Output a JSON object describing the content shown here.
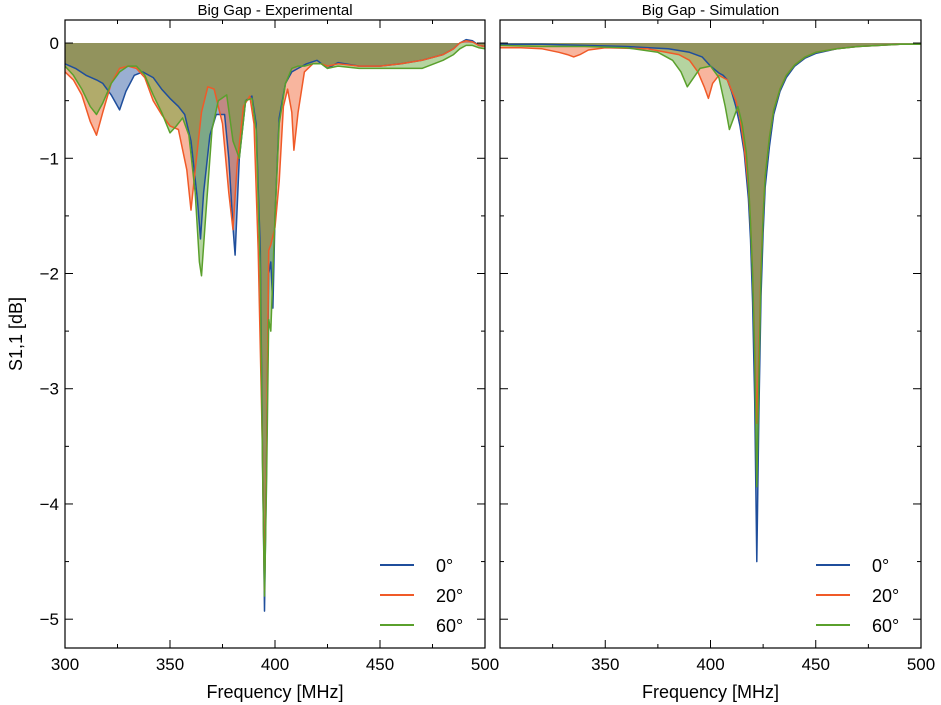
{
  "chart_data": [
    {
      "type": "area",
      "title": "Big Gap - Experimental",
      "xlabel": "Frequency [MHz]",
      "ylabel": "S1,1 [dB]",
      "xlim": [
        300,
        500
      ],
      "ylim": [
        -5.25,
        0.2
      ],
      "xticks": [
        300,
        350,
        400,
        450,
        500
      ],
      "xtick_labels": [
        "300",
        "350",
        "400",
        "450",
        "500"
      ],
      "yticks": [
        0,
        -1,
        -2,
        -3,
        -4,
        -5
      ],
      "ytick_labels": [
        "0",
        "−1",
        "−2",
        "−3",
        "−4",
        "−5"
      ],
      "legend_position": "lower-right",
      "series": [
        {
          "name": "0°",
          "color": "#1f4e9c",
          "x": [
            300,
            305,
            310,
            315,
            318,
            322,
            326,
            329,
            333,
            337,
            342,
            346,
            350,
            354,
            357,
            360,
            363,
            364.5,
            366,
            369,
            372,
            376,
            378,
            380,
            381,
            383,
            386,
            389,
            391,
            393,
            394,
            395,
            396,
            397,
            398,
            399,
            400,
            402,
            405,
            408,
            411,
            415,
            420,
            425,
            430,
            440,
            450,
            460,
            470,
            480,
            485,
            488,
            491,
            494,
            497,
            500
          ],
          "values": [
            -0.18,
            -0.22,
            -0.28,
            -0.32,
            -0.35,
            -0.45,
            -0.58,
            -0.42,
            -0.28,
            -0.25,
            -0.3,
            -0.4,
            -0.48,
            -0.55,
            -0.62,
            -0.85,
            -1.35,
            -1.7,
            -1.3,
            -0.8,
            -0.62,
            -0.62,
            -1.0,
            -1.6,
            -1.84,
            -1.0,
            -0.5,
            -0.46,
            -0.7,
            -1.8,
            -3.5,
            -4.93,
            -3.6,
            -2.0,
            -1.9,
            -2.3,
            -1.5,
            -0.65,
            -0.35,
            -0.25,
            -0.22,
            -0.18,
            -0.15,
            -0.22,
            -0.17,
            -0.2,
            -0.2,
            -0.18,
            -0.15,
            -0.1,
            -0.05,
            0.0,
            0.03,
            0.02,
            -0.02,
            -0.03
          ]
        },
        {
          "name": "20°",
          "color": "#f05a28",
          "x": [
            300,
            304,
            308,
            312,
            315,
            318,
            322,
            326,
            330,
            334,
            338,
            342,
            346,
            350,
            354,
            358,
            360,
            362,
            365,
            368,
            371,
            375,
            378,
            380,
            382,
            385,
            388,
            390,
            392,
            394,
            395,
            396,
            397,
            398,
            400,
            402,
            404,
            406,
            408,
            409,
            411,
            414,
            418,
            422,
            425,
            430,
            440,
            450,
            460,
            470,
            480,
            485,
            488,
            491,
            494,
            497,
            500
          ],
          "values": [
            -0.25,
            -0.32,
            -0.45,
            -0.68,
            -0.8,
            -0.6,
            -0.35,
            -0.22,
            -0.2,
            -0.22,
            -0.3,
            -0.5,
            -0.62,
            -0.72,
            -0.75,
            -1.1,
            -1.45,
            -1.1,
            -0.6,
            -0.38,
            -0.4,
            -0.7,
            -1.3,
            -1.62,
            -1.05,
            -0.55,
            -0.46,
            -0.7,
            -1.8,
            -3.5,
            -4.75,
            -3.6,
            -1.8,
            -1.75,
            -1.6,
            -1.2,
            -0.55,
            -0.4,
            -0.6,
            -0.93,
            -0.6,
            -0.25,
            -0.18,
            -0.18,
            -0.2,
            -0.18,
            -0.2,
            -0.2,
            -0.18,
            -0.15,
            -0.1,
            -0.05,
            0.0,
            0.02,
            0.01,
            -0.02,
            -0.03
          ]
        },
        {
          "name": "60°",
          "color": "#5aa02c",
          "x": [
            300,
            304,
            308,
            312,
            315,
            318,
            322,
            326,
            330,
            334,
            338,
            342,
            346,
            350,
            353,
            356,
            359,
            362,
            364,
            365,
            367,
            370,
            373,
            377,
            380,
            383,
            386,
            389,
            391,
            393,
            394,
            395,
            396,
            397,
            398,
            400,
            402,
            405,
            408,
            411,
            414,
            418,
            422,
            425,
            430,
            440,
            450,
            460,
            470,
            480,
            485,
            488,
            491,
            494,
            497,
            500
          ],
          "values": [
            -0.2,
            -0.28,
            -0.4,
            -0.55,
            -0.62,
            -0.52,
            -0.35,
            -0.25,
            -0.2,
            -0.2,
            -0.28,
            -0.45,
            -0.6,
            -0.78,
            -0.72,
            -0.65,
            -0.8,
            -1.3,
            -1.9,
            -2.02,
            -1.5,
            -0.75,
            -0.5,
            -0.45,
            -0.85,
            -1.0,
            -0.5,
            -0.48,
            -0.75,
            -2.0,
            -3.6,
            -4.8,
            -3.8,
            -2.4,
            -2.5,
            -1.5,
            -0.7,
            -0.35,
            -0.22,
            -0.2,
            -0.2,
            -0.18,
            -0.18,
            -0.22,
            -0.2,
            -0.22,
            -0.22,
            -0.22,
            -0.22,
            -0.15,
            -0.1,
            -0.05,
            -0.02,
            -0.02,
            -0.04,
            -0.05
          ]
        }
      ]
    },
    {
      "type": "area",
      "title": "Big Gap - Simulation",
      "xlabel": "Frequency [MHz]",
      "ylabel": "",
      "xlim": [
        300,
        500
      ],
      "ylim": [
        -5.25,
        0.2
      ],
      "xticks": [
        350,
        400,
        450,
        500
      ],
      "xtick_labels": [
        "350",
        "400",
        "450",
        "500"
      ],
      "yticks": [
        0,
        -1,
        -2,
        -3,
        -4,
        -5
      ],
      "ytick_labels": [],
      "legend_position": "lower-right",
      "series": [
        {
          "name": "0°",
          "color": "#1f4e9c",
          "x": [
            300,
            320,
            340,
            360,
            380,
            390,
            396,
            400,
            404,
            406,
            408,
            410,
            412,
            414,
            416,
            418,
            419,
            420,
            421,
            422,
            423,
            424,
            425,
            426,
            428,
            430,
            433,
            436,
            440,
            445,
            450,
            460,
            470,
            480,
            490,
            500
          ],
          "values": [
            -0.01,
            -0.01,
            -0.02,
            -0.03,
            -0.05,
            -0.08,
            -0.12,
            -0.2,
            -0.26,
            -0.28,
            -0.32,
            -0.42,
            -0.55,
            -0.72,
            -0.95,
            -1.35,
            -1.7,
            -2.25,
            -3.1,
            -4.5,
            -3.2,
            -2.2,
            -1.65,
            -1.25,
            -0.9,
            -0.62,
            -0.42,
            -0.3,
            -0.2,
            -0.13,
            -0.09,
            -0.05,
            -0.03,
            -0.02,
            -0.01,
            -0.01
          ]
        },
        {
          "name": "20°",
          "color": "#f05a28",
          "x": [
            300,
            310,
            320,
            328,
            332,
            335,
            338,
            342,
            350,
            370,
            385,
            390,
            394,
            397,
            399,
            401,
            404,
            408,
            412,
            414,
            416,
            418,
            419,
            420,
            421,
            422,
            423,
            424,
            425,
            426,
            428,
            430,
            433,
            436,
            440,
            445,
            450,
            460,
            470,
            480,
            490,
            500
          ],
          "values": [
            -0.04,
            -0.04,
            -0.05,
            -0.08,
            -0.1,
            -0.12,
            -0.1,
            -0.06,
            -0.04,
            -0.05,
            -0.1,
            -0.15,
            -0.25,
            -0.38,
            -0.48,
            -0.35,
            -0.28,
            -0.32,
            -0.5,
            -0.65,
            -0.9,
            -1.25,
            -1.55,
            -2.0,
            -2.6,
            -3.3,
            -2.7,
            -1.95,
            -1.5,
            -1.15,
            -0.82,
            -0.58,
            -0.4,
            -0.28,
            -0.19,
            -0.12,
            -0.08,
            -0.05,
            -0.03,
            -0.02,
            -0.01,
            -0.01
          ]
        },
        {
          "name": "60°",
          "color": "#5aa02c",
          "x": [
            300,
            320,
            340,
            360,
            375,
            382,
            386,
            389,
            392,
            395,
            400,
            404,
            407,
            409,
            411,
            413,
            415,
            417,
            418,
            419,
            420,
            421,
            422,
            423,
            424,
            425,
            426,
            428,
            430,
            433,
            436,
            440,
            445,
            450,
            460,
            470,
            480,
            490,
            500
          ],
          "values": [
            -0.02,
            -0.03,
            -0.03,
            -0.04,
            -0.08,
            -0.15,
            -0.25,
            -0.38,
            -0.3,
            -0.22,
            -0.2,
            -0.3,
            -0.55,
            -0.75,
            -0.65,
            -0.55,
            -0.7,
            -0.95,
            -1.2,
            -1.55,
            -2.0,
            -2.7,
            -3.85,
            -2.9,
            -2.0,
            -1.5,
            -1.15,
            -0.82,
            -0.58,
            -0.4,
            -0.28,
            -0.19,
            -0.12,
            -0.08,
            -0.05,
            -0.03,
            -0.02,
            -0.01,
            -0.01
          ]
        }
      ]
    }
  ]
}
